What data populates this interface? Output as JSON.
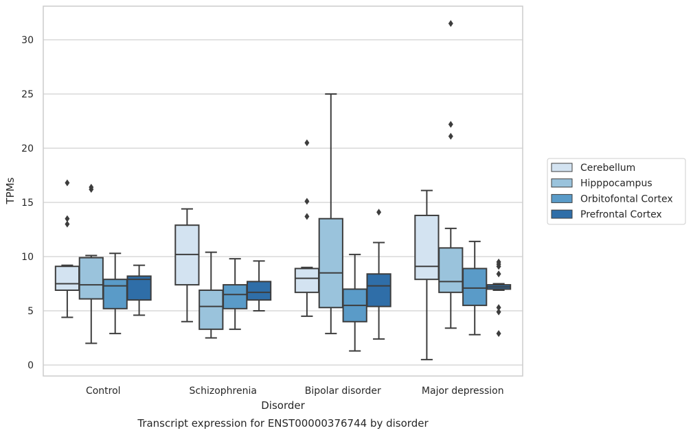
{
  "chart_data": {
    "type": "box",
    "caption": "Transcript expression for ENST00000376744 by disorder",
    "xlabel": "Disorder",
    "ylabel": "TPMs",
    "ylim": [
      -1,
      33
    ],
    "yticks": [
      0,
      5,
      10,
      15,
      20,
      25,
      30
    ],
    "grid": "horizontal",
    "legend_position": "right",
    "categories": [
      "Control",
      "Schizophrenia",
      "Bipolar disorder",
      "Major depression"
    ],
    "series": [
      {
        "name": "Cerebellum",
        "color": "#d3e3f1",
        "boxes": [
          {
            "whislo": 4.4,
            "q1": 6.9,
            "med": 7.5,
            "q3": 9.1,
            "whishi": 9.2,
            "fliers": [
              13.0,
              13.5,
              16.8
            ]
          },
          {
            "whislo": 4.0,
            "q1": 7.4,
            "med": 10.2,
            "q3": 12.9,
            "whishi": 14.4,
            "fliers": []
          },
          {
            "whislo": 4.5,
            "q1": 6.7,
            "med": 8.0,
            "q3": 8.9,
            "whishi": 9.0,
            "fliers": [
              13.7,
              15.1,
              20.5
            ]
          },
          {
            "whislo": 0.5,
            "q1": 7.9,
            "med": 9.1,
            "q3": 13.8,
            "whishi": 16.1,
            "fliers": []
          }
        ]
      },
      {
        "name": "Hipppocampus",
        "color": "#9ac3dc",
        "boxes": [
          {
            "whislo": 2.0,
            "q1": 6.1,
            "med": 7.4,
            "q3": 9.9,
            "whishi": 10.1,
            "fliers": [
              16.2,
              16.4
            ]
          },
          {
            "whislo": 2.5,
            "q1": 3.3,
            "med": 5.4,
            "q3": 6.9,
            "whishi": 10.4,
            "fliers": []
          },
          {
            "whislo": 2.9,
            "q1": 5.3,
            "med": 8.5,
            "q3": 13.5,
            "whishi": 25.0,
            "fliers": []
          },
          {
            "whislo": 3.4,
            "q1": 6.7,
            "med": 7.7,
            "q3": 10.8,
            "whishi": 12.6,
            "fliers": [
              21.1,
              22.2,
              31.5
            ]
          }
        ]
      },
      {
        "name": "Orbitofontal Cortex",
        "color": "#5a9bc8",
        "boxes": [
          {
            "whislo": 2.9,
            "q1": 5.2,
            "med": 7.3,
            "q3": 7.9,
            "whishi": 10.3,
            "fliers": []
          },
          {
            "whislo": 3.3,
            "q1": 5.2,
            "med": 6.5,
            "q3": 7.4,
            "whishi": 9.8,
            "fliers": []
          },
          {
            "whislo": 1.3,
            "q1": 4.0,
            "med": 5.5,
            "q3": 7.0,
            "whishi": 10.2,
            "fliers": []
          },
          {
            "whislo": 2.8,
            "q1": 5.5,
            "med": 7.1,
            "q3": 8.9,
            "whishi": 11.4,
            "fliers": []
          }
        ]
      },
      {
        "name": "Prefrontal Cortex",
        "color": "#2f6ea8",
        "boxes": [
          {
            "whislo": 4.6,
            "q1": 6.0,
            "med": 7.9,
            "q3": 8.2,
            "whishi": 9.2,
            "fliers": []
          },
          {
            "whislo": 5.0,
            "q1": 6.0,
            "med": 6.7,
            "q3": 7.7,
            "whishi": 9.6,
            "fliers": []
          },
          {
            "whislo": 2.4,
            "q1": 5.4,
            "med": 7.3,
            "q3": 8.4,
            "whishi": 11.3,
            "fliers": [
              14.1
            ]
          },
          {
            "whislo": 6.9,
            "q1": 7.0,
            "med": 7.2,
            "q3": 7.4,
            "whishi": 7.5,
            "fliers": [
              2.9,
              4.9,
              5.3,
              8.4,
              9.1,
              9.3,
              9.5
            ]
          }
        ]
      }
    ]
  }
}
